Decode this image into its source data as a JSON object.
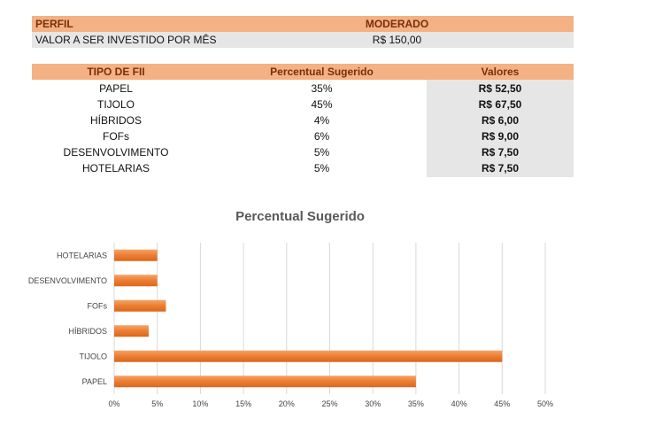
{
  "profile": {
    "label": "PERFIL",
    "value": "MODERADO",
    "invest_label": "VALOR A SER INVESTIDO POR MÊS",
    "invest_value": "R$ 150,00"
  },
  "table": {
    "headers": [
      "TIPO DE FII",
      "Percentual Sugerido",
      "Valores"
    ],
    "rows": [
      {
        "tipo": "PAPEL",
        "pct": "35%",
        "valor": "R$ 52,50"
      },
      {
        "tipo": "TIJOLO",
        "pct": "45%",
        "valor": "R$ 67,50"
      },
      {
        "tipo": "HÍBRIDOS",
        "pct": "4%",
        "valor": "R$ 6,00"
      },
      {
        "tipo": "FOFs",
        "pct": "6%",
        "valor": "R$ 9,00"
      },
      {
        "tipo": "DESENVOLVIMENTO",
        "pct": "5%",
        "valor": "R$ 7,50"
      },
      {
        "tipo": "HOTELARIAS",
        "pct": "5%",
        "valor": "R$ 7,50"
      }
    ]
  },
  "colors": {
    "header_bg": "#f4b183",
    "bar": "#ed7d31",
    "grid": "#d9d9d9"
  },
  "chart_data": {
    "type": "bar",
    "orientation": "horizontal",
    "title": "Percentual Sugerido",
    "categories": [
      "PAPEL",
      "TIJOLO",
      "HÍBRIDOS",
      "FOFs",
      "DESENVOLVIMENTO",
      "HOTELARIAS"
    ],
    "values": [
      35,
      45,
      4,
      6,
      5,
      5
    ],
    "xlim": [
      0,
      50
    ],
    "xticks": [
      "0%",
      "5%",
      "10%",
      "15%",
      "20%",
      "25%",
      "30%",
      "35%",
      "40%",
      "45%",
      "50%"
    ],
    "grid": true,
    "legend": "none"
  }
}
